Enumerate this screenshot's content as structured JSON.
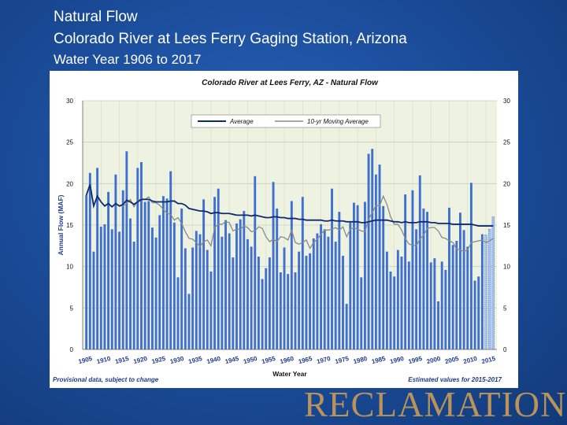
{
  "slide": {
    "title_line1": "Natural Flow",
    "title_line2": "Colorado River at Lees Ferry Gaging Station, Arizona",
    "title_line3": "Water Year 1906 to 2017"
  },
  "footer": {
    "provisional": "Provisional data, subject to change",
    "estimated": "Estimated values for 2015-2017",
    "logo": "RECLAMATION"
  },
  "colors": {
    "bar": "#3f6fd0",
    "bar_estimated": "#a9c4ee",
    "average_line": "#0f2a6e",
    "moving_avg_line": "#8a8a8a",
    "plot_bg": "#eef3e1",
    "footer_text": "#1f3a8a"
  },
  "chart_data": {
    "type": "bar",
    "title": "Colorado River at Lees Ferry, AZ - Natural Flow",
    "xlabel": "Water Year",
    "ylabel": "Annual Flow (MAF)",
    "ylim": [
      0,
      30
    ],
    "yticks": [
      0,
      5,
      10,
      15,
      20,
      25,
      30
    ],
    "xlim": [
      1905,
      2018
    ],
    "xticks": [
      1905,
      1910,
      1915,
      1920,
      1925,
      1930,
      1935,
      1940,
      1945,
      1950,
      1955,
      1960,
      1965,
      1970,
      1975,
      1980,
      1985,
      1990,
      1995,
      2000,
      2005,
      2010,
      2015
    ],
    "grid": true,
    "legend_position": "top",
    "legend": [
      "Average",
      "10-yr Moving Average"
    ],
    "years": [
      1906,
      1907,
      1908,
      1909,
      1910,
      1911,
      1912,
      1913,
      1914,
      1915,
      1916,
      1917,
      1918,
      1919,
      1920,
      1921,
      1922,
      1923,
      1924,
      1925,
      1926,
      1927,
      1928,
      1929,
      1930,
      1931,
      1932,
      1933,
      1934,
      1935,
      1936,
      1937,
      1938,
      1939,
      1940,
      1941,
      1942,
      1943,
      1944,
      1945,
      1946,
      1947,
      1948,
      1949,
      1950,
      1951,
      1952,
      1953,
      1954,
      1955,
      1956,
      1957,
      1958,
      1959,
      1960,
      1961,
      1962,
      1963,
      1964,
      1965,
      1966,
      1967,
      1968,
      1969,
      1970,
      1971,
      1972,
      1973,
      1974,
      1975,
      1976,
      1977,
      1978,
      1979,
      1980,
      1981,
      1982,
      1983,
      1984,
      1985,
      1986,
      1987,
      1988,
      1989,
      1990,
      1991,
      1992,
      1993,
      1994,
      1995,
      1996,
      1997,
      1998,
      1999,
      2000,
      2001,
      2002,
      2003,
      2004,
      2005,
      2006,
      2007,
      2008,
      2009,
      2010,
      2011,
      2012,
      2013,
      2014,
      2015,
      2016,
      2017
    ],
    "series": [
      {
        "name": "Annual Flow",
        "values": [
          18.6,
          21.3,
          11.8,
          21.9,
          14.8,
          15.1,
          19.0,
          14.5,
          21.1,
          14.2,
          19.2,
          23.9,
          15.8,
          13.0,
          21.9,
          22.6,
          17.8,
          17.9,
          14.7,
          13.5,
          16.2,
          18.5,
          18.2,
          21.5,
          15.3,
          8.7,
          17.0,
          12.2,
          6.7,
          12.3,
          14.3,
          13.9,
          18.1,
          12.0,
          9.4,
          18.4,
          19.4,
          13.6,
          15.6,
          14.0,
          11.1,
          15.2,
          15.7,
          16.7,
          13.3,
          12.4,
          20.9,
          11.2,
          8.5,
          9.8,
          11.1,
          20.2,
          17.0,
          9.3,
          12.3,
          9.1,
          17.9,
          9.3,
          11.8,
          18.4,
          11.3,
          11.6,
          13.4,
          14.0,
          15.1,
          14.5,
          13.6,
          19.4,
          13.0,
          16.6,
          11.3,
          5.5,
          15.3,
          17.7,
          17.4,
          8.7,
          17.8,
          23.6,
          24.2,
          21.1,
          22.3,
          17.3,
          11.8,
          9.4,
          8.8,
          12.0,
          11.2,
          18.7,
          10.6,
          19.2,
          14.5,
          21.0,
          17.0,
          16.6,
          10.5,
          11.0,
          5.8,
          10.6,
          9.6,
          17.1,
          12.6,
          13.1,
          16.5,
          14.4,
          12.4,
          20.1,
          8.3,
          8.8,
          13.9,
          13.8,
          14.5,
          16.0
        ]
      },
      {
        "name": "Average",
        "values": [
          18.6,
          19.9,
          17.3,
          18.5,
          17.8,
          17.3,
          17.6,
          17.2,
          17.6,
          17.3,
          17.5,
          18.0,
          17.8,
          17.5,
          17.8,
          18.1,
          18.1,
          18.1,
          17.9,
          17.8,
          17.8,
          17.8,
          17.8,
          17.9,
          17.9,
          17.6,
          17.6,
          17.4,
          17.0,
          16.9,
          16.8,
          16.7,
          16.7,
          16.6,
          16.4,
          16.5,
          16.5,
          16.4,
          16.4,
          16.4,
          16.3,
          16.2,
          16.2,
          16.2,
          16.2,
          16.1,
          16.2,
          16.1,
          16.0,
          15.9,
          15.9,
          16.0,
          16.0,
          15.9,
          15.9,
          15.8,
          15.8,
          15.8,
          15.7,
          15.7,
          15.6,
          15.6,
          15.6,
          15.6,
          15.6,
          15.5,
          15.5,
          15.6,
          15.5,
          15.5,
          15.5,
          15.4,
          15.4,
          15.4,
          15.4,
          15.3,
          15.3,
          15.4,
          15.5,
          15.6,
          15.6,
          15.6,
          15.6,
          15.5,
          15.4,
          15.4,
          15.3,
          15.4,
          15.3,
          15.3,
          15.3,
          15.4,
          15.4,
          15.4,
          15.3,
          15.3,
          15.2,
          15.2,
          15.2,
          15.2,
          15.1,
          15.1,
          15.1,
          15.1,
          15.1,
          15.1,
          15.0,
          14.9,
          14.9,
          14.9,
          14.9,
          14.9
        ]
      },
      {
        "name": "10-yr Moving Average",
        "values": [
          18.6,
          19.9,
          17.3,
          18.5,
          17.8,
          17.3,
          17.6,
          17.2,
          17.6,
          17.3,
          17.3,
          17.6,
          18.1,
          17.2,
          17.9,
          18.2,
          18.1,
          18.4,
          17.7,
          17.7,
          17.4,
          16.9,
          16.4,
          16.3,
          15.6,
          15.9,
          15.2,
          14.2,
          13.4,
          13.3,
          12.9,
          12.4,
          13.0,
          13.2,
          12.5,
          14.7,
          15.1,
          15.1,
          15.4,
          15.3,
          14.3,
          14.5,
          14.5,
          14.9,
          14.7,
          14.2,
          14.3,
          14.8,
          14.6,
          13.6,
          13.0,
          13.3,
          13.0,
          13.6,
          13.5,
          13.2,
          14.4,
          12.9,
          12.7,
          12.9,
          13.2,
          12.2,
          12.9,
          13.3,
          13.9,
          14.4,
          14.4,
          14.5,
          14.7,
          14.4,
          14.8,
          13.6,
          14.5,
          14.7,
          14.5,
          14.3,
          14.2,
          15.7,
          16.5,
          17.4,
          17.3,
          18.5,
          17.5,
          16.0,
          15.1,
          15.1,
          14.4,
          13.4,
          12.7,
          12.6,
          12.5,
          13.3,
          13.8,
          14.6,
          14.7,
          14.7,
          14.3,
          13.5,
          13.4,
          13.1,
          12.9,
          12.1,
          12.0,
          11.8,
          12.0,
          12.9,
          13.0,
          13.1,
          13.2,
          12.9,
          13.1,
          13.4
        ]
      }
    ],
    "estimated_years": [
      2015,
      2016,
      2017
    ]
  }
}
